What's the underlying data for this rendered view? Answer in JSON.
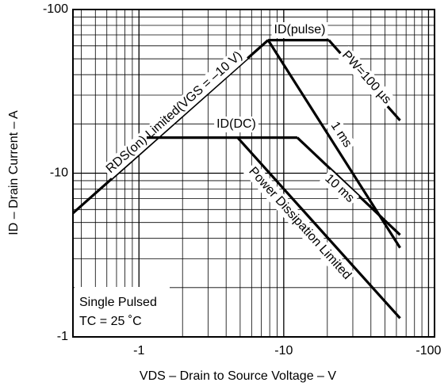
{
  "chart_data": {
    "type": "line",
    "x_label": "VDS – Drain to Source Voltage – V",
    "y_label": "ID – Drain Current – A",
    "log_x": true,
    "log_y": true,
    "grid": true,
    "xlim": [
      -0.35,
      -110
    ],
    "ylim": [
      -1,
      -100
    ],
    "xticks": [
      -1,
      -10,
      -100
    ],
    "yticks": [
      -1,
      -10,
      -100
    ],
    "xticks_minor": [
      -0.4,
      -0.5,
      -0.6,
      -0.7,
      -0.8,
      -0.9,
      -2,
      -3,
      -4,
      -5,
      -6,
      -7,
      -8,
      -9,
      -20,
      -30,
      -40,
      -50,
      -60,
      -70,
      -80,
      -90
    ],
    "yticks_minor": [
      -2,
      -3,
      -4,
      -5,
      -6,
      -7,
      -8,
      -9,
      -20,
      -30,
      -40,
      -50,
      -60,
      -70,
      -80,
      -90
    ],
    "series": [
      {
        "name": "RDS(on) Limited(VGS = –10 V)",
        "color": "#000000",
        "x": [
          -0.35,
          -7.8
        ],
        "values": [
          -5.7,
          -65
        ]
      },
      {
        "name": "ID(pulse)",
        "color": "#000000",
        "x": [
          -7.8,
          -20.5
        ],
        "values": [
          -65,
          -65
        ]
      },
      {
        "name": "PW=100 µs",
        "color": "#000000",
        "x": [
          -20.5,
          -63.6
        ],
        "values": [
          -65,
          -21
        ]
      },
      {
        "name": "1 ms",
        "color": "#000000",
        "x": [
          -7.8,
          -63.6
        ],
        "values": [
          -65,
          -3.5
        ]
      },
      {
        "name": "ID(DC)",
        "color": "#000000",
        "x": [
          -1.13,
          -12.4
        ],
        "values": [
          -16.5,
          -16.5
        ]
      },
      {
        "name": "10 ms",
        "color": "#000000",
        "x": [
          -12.4,
          -63.6
        ],
        "values": [
          -16.5,
          -4.2
        ]
      },
      {
        "name": "Power Dissipation Limited",
        "color": "#000000",
        "x": [
          -4.8,
          -63.6
        ],
        "values": [
          -16.5,
          -1.3
        ]
      }
    ],
    "annotations": [
      "Single Pulsed",
      "TC = 25 ˚C"
    ]
  }
}
